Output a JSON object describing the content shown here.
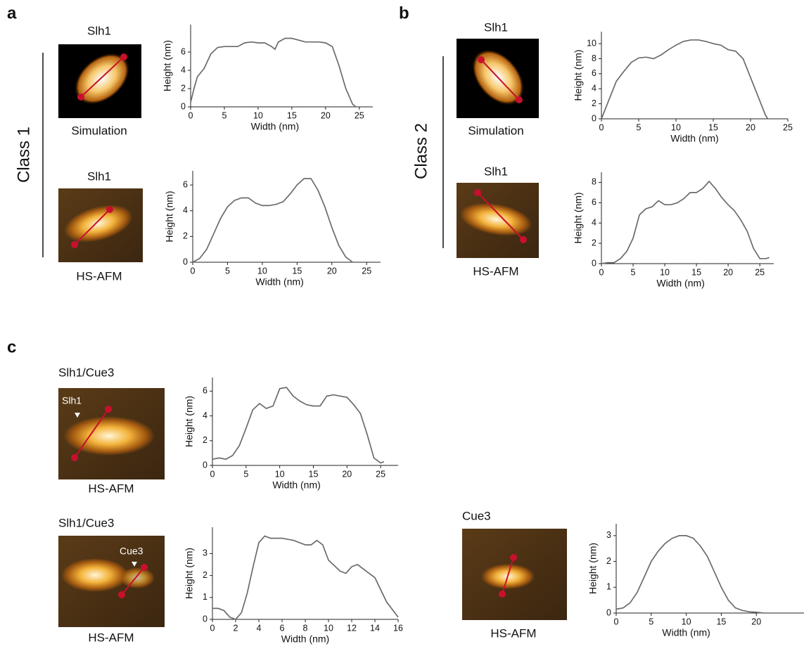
{
  "panel_labels": [
    "a",
    "b",
    "c"
  ],
  "class_labels": [
    "Class 1",
    "Class 2"
  ],
  "images": [
    {
      "title": "Slh1",
      "caption": "Simulation"
    },
    {
      "title": "Slh1",
      "caption": "HS-AFM"
    },
    {
      "title": "Slh1",
      "caption": "Simulation"
    },
    {
      "title": "Slh1",
      "caption": "HS-AFM"
    },
    {
      "title": "Slh1/Cue3",
      "caption": "HS-AFM",
      "annotation": "Slh1"
    },
    {
      "title": "Slh1/Cue3",
      "caption": "HS-AFM",
      "annotation": "Cue3"
    },
    {
      "title": "Cue3",
      "caption": "HS-AFM"
    }
  ],
  "chart_data": [
    {
      "type": "line",
      "xlabel": "Width (nm)",
      "ylabel": "Height (nm)",
      "color": "#6b6b6b",
      "x": [
        0,
        0.5,
        1,
        2,
        3,
        4,
        5,
        6,
        7,
        8,
        9,
        10,
        11,
        12,
        12.5,
        13,
        14,
        15,
        16,
        17,
        18,
        19,
        20,
        21,
        22,
        23,
        24,
        24.5
      ],
      "values": [
        0.5,
        2,
        3.3,
        4.2,
        5.8,
        6.5,
        6.6,
        6.6,
        6.6,
        7.0,
        7.1,
        7.0,
        7.0,
        6.6,
        6.3,
        7.1,
        7.5,
        7.5,
        7.3,
        7.1,
        7.1,
        7.1,
        7.0,
        6.6,
        4.5,
        2,
        0.3,
        0
      ],
      "xlim": [
        0,
        27
      ],
      "ylim": [
        0,
        9
      ],
      "xticks": [
        0,
        5,
        10,
        15,
        20,
        25
      ],
      "yticks": [
        0,
        2,
        4,
        6
      ]
    },
    {
      "type": "line",
      "xlabel": "Width (nm)",
      "ylabel": "Height (nm)",
      "color": "#6b6b6b",
      "x": [
        0,
        1,
        2,
        3,
        4,
        5,
        6,
        7,
        8,
        9,
        10,
        11,
        12,
        13,
        14,
        15,
        16,
        17,
        18,
        19,
        20,
        21,
        22,
        23
      ],
      "values": [
        0,
        0.3,
        1,
        2.2,
        3.4,
        4.3,
        4.8,
        5.0,
        5.0,
        4.6,
        4.4,
        4.4,
        4.5,
        4.7,
        5.3,
        6.0,
        6.5,
        6.5,
        5.6,
        4.3,
        2.7,
        1.3,
        0.4,
        0
      ],
      "xlim": [
        0,
        27
      ],
      "ylim": [
        0,
        7.1
      ],
      "xticks": [
        0,
        5,
        10,
        15,
        20,
        25
      ],
      "yticks": [
        0,
        2,
        4,
        6
      ]
    },
    {
      "type": "line",
      "xlabel": "Width (nm)",
      "ylabel": "Height (nm)",
      "color": "#6b6b6b",
      "x": [
        0,
        1,
        2,
        3,
        4,
        5,
        6,
        7,
        8,
        9,
        10,
        11,
        12,
        13,
        14,
        15,
        16,
        17,
        18,
        19,
        20,
        21,
        22,
        22.3
      ],
      "values": [
        0,
        2.5,
        5,
        6.3,
        7.5,
        8.1,
        8.2,
        8,
        8.5,
        9.2,
        9.8,
        10.3,
        10.5,
        10.5,
        10.3,
        10,
        9.8,
        9.2,
        9,
        8,
        5.5,
        3,
        0.5,
        0
      ],
      "xlim": [
        0,
        25
      ],
      "ylim": [
        0,
        11.6
      ],
      "xticks": [
        0,
        5,
        10,
        15,
        20,
        25
      ],
      "yticks": [
        0,
        2,
        4,
        6,
        8,
        10
      ]
    },
    {
      "type": "line",
      "xlabel": "Width (nm)",
      "ylabel": "Height (nm)",
      "color": "#6b6b6b",
      "x": [
        0,
        1,
        2,
        3,
        4,
        5,
        6,
        7,
        8,
        9,
        10,
        11,
        12,
        13,
        14,
        15,
        16,
        17,
        18,
        19,
        20,
        21,
        22,
        23,
        24,
        25,
        26,
        26.5
      ],
      "values": [
        0,
        0.1,
        0.1,
        0.5,
        1.2,
        2.5,
        4.8,
        5.4,
        5.6,
        6.2,
        5.8,
        5.8,
        6.0,
        6.4,
        7.0,
        7.0,
        7.4,
        8.1,
        7.4,
        6.5,
        5.8,
        5.2,
        4.3,
        3.2,
        1.5,
        0.5,
        0.5,
        0.6
      ],
      "xlim": [
        0,
        27.2
      ],
      "ylim": [
        0,
        9
      ],
      "xticks": [
        0,
        5,
        10,
        15,
        20,
        25
      ],
      "yticks": [
        0,
        2,
        4,
        6,
        8
      ]
    },
    {
      "type": "line",
      "xlabel": "Width (nm)",
      "ylabel": "Height (nm)",
      "color": "#6b6b6b",
      "x": [
        0,
        1,
        2,
        3,
        4,
        5,
        6,
        7,
        8,
        9,
        10,
        11,
        12,
        13,
        14,
        15,
        16,
        17,
        18,
        19,
        20,
        21,
        22,
        23,
        24,
        25,
        25.5
      ],
      "values": [
        0.5,
        0.6,
        0.5,
        0.8,
        1.6,
        3.0,
        4.5,
        5.0,
        4.6,
        4.8,
        6.2,
        6.3,
        5.6,
        5.2,
        4.9,
        4.8,
        4.8,
        5.6,
        5.7,
        5.6,
        5.5,
        4.9,
        4.2,
        2.5,
        0.6,
        0.2,
        0.3
      ],
      "xlim": [
        0,
        27.6
      ],
      "ylim": [
        0,
        7.1
      ],
      "xticks": [
        0,
        5,
        10,
        15,
        20,
        25
      ],
      "yticks": [
        0,
        2,
        4,
        6
      ]
    },
    {
      "type": "line",
      "xlabel": "Width (nm)",
      "ylabel": "Height (nm)",
      "color": "#6b6b6b",
      "x": [
        0,
        0.5,
        1,
        1.5,
        2,
        2.5,
        3,
        3.5,
        4,
        4.5,
        5,
        6,
        7,
        8,
        8.5,
        9,
        9.5,
        10,
        11,
        11.5,
        12,
        12.5,
        13,
        14,
        15,
        16
      ],
      "values": [
        0.5,
        0.5,
        0.4,
        0.1,
        0,
        0.3,
        1.2,
        2.4,
        3.5,
        3.8,
        3.7,
        3.7,
        3.6,
        3.4,
        3.4,
        3.6,
        3.4,
        2.7,
        2.2,
        2.1,
        2.4,
        2.5,
        2.3,
        1.9,
        0.8,
        0.1
      ],
      "xlim": [
        0,
        16
      ],
      "ylim": [
        0,
        4.2
      ],
      "xticks": [
        0,
        2,
        4,
        6,
        8,
        10,
        12,
        14,
        16
      ],
      "yticks": [
        0,
        1,
        2,
        3
      ]
    },
    {
      "type": "line",
      "xlabel": "Width (nm)",
      "ylabel": "Height (nm)",
      "color": "#6b6b6b",
      "x": [
        0,
        1,
        2,
        3,
        4,
        5,
        6,
        7,
        8,
        9,
        10,
        11,
        12,
        13,
        14,
        15,
        16,
        17,
        18,
        19,
        20,
        21
      ],
      "values": [
        0.15,
        0.2,
        0.4,
        0.8,
        1.4,
        2.0,
        2.4,
        2.7,
        2.9,
        3.0,
        3.0,
        2.9,
        2.6,
        2.2,
        1.6,
        1.0,
        0.5,
        0.2,
        0.1,
        0.05,
        0.03,
        0
      ],
      "xlim": [
        0,
        26.8
      ],
      "ylim": [
        0,
        3.46
      ],
      "xticks": [
        0,
        5,
        10,
        15,
        20
      ],
      "yticks": [
        0,
        1,
        2,
        3
      ]
    }
  ]
}
